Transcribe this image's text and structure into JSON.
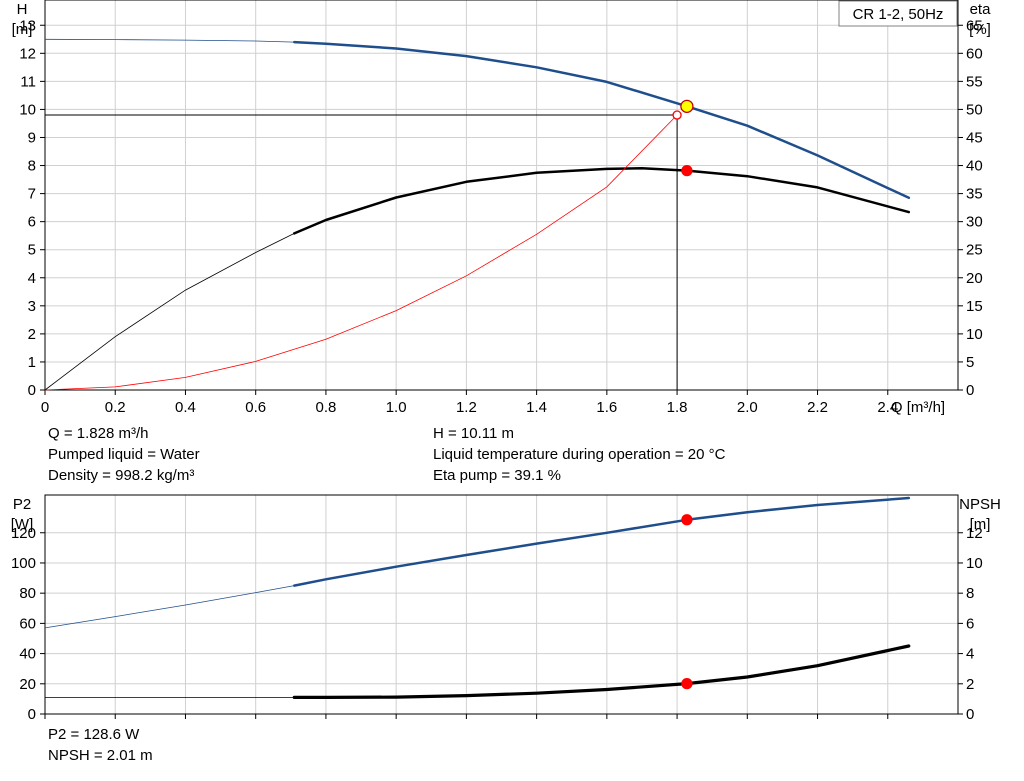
{
  "chart_data": [
    {
      "type": "line",
      "title": "CR 1-2, 50Hz",
      "x_axis": {
        "label": "Q [m³/h]",
        "range": [
          0,
          2.6
        ],
        "ticks": [
          0,
          0.2,
          0.4,
          0.6,
          0.8,
          1.0,
          1.2,
          1.4,
          1.6,
          1.8,
          2.0,
          2.2,
          2.4
        ],
        "tick_labels": [
          "0",
          "0.2",
          "0.4",
          "0.6",
          "0.8",
          "1.0",
          "1.2",
          "1.4",
          "1.6",
          "1.8",
          "2.0",
          "2.2",
          "2.4"
        ]
      },
      "y_left": {
        "label_line1": "H",
        "label_line2": "[m]",
        "range": [
          0,
          13.9
        ],
        "ticks": [
          0,
          1,
          2,
          3,
          4,
          5,
          6,
          7,
          8,
          9,
          10,
          11,
          12,
          13
        ],
        "tick_labels": [
          "0",
          "1",
          "2",
          "3",
          "4",
          "5",
          "6",
          "7",
          "8",
          "9",
          "10",
          "11",
          "12",
          "13"
        ]
      },
      "y_right": {
        "label_line1": "eta",
        "label_line2": "[%]",
        "range": [
          0,
          69.5
        ],
        "ticks": [
          0,
          5,
          10,
          15,
          20,
          25,
          30,
          35,
          40,
          45,
          50,
          55,
          60,
          65
        ],
        "tick_labels": [
          "0",
          "5",
          "10",
          "15",
          "20",
          "25",
          "30",
          "35",
          "40",
          "45",
          "50",
          "55",
          "60",
          "65"
        ]
      },
      "grid": true,
      "series": [
        {
          "axis": "left",
          "color": "#1f4e8c",
          "operating_from": 0.71,
          "x": [
            0,
            0.2,
            0.4,
            0.6,
            0.71,
            0.8,
            1.0,
            1.2,
            1.4,
            1.6,
            1.828,
            2.0,
            2.2,
            2.46
          ],
          "y": [
            12.5,
            12.49,
            12.47,
            12.44,
            12.4,
            12.34,
            12.17,
            11.9,
            11.5,
            10.98,
            10.11,
            9.42,
            8.36,
            6.85
          ]
        },
        {
          "axis": "right",
          "color": "#000000",
          "operating_from": 0.71,
          "x": [
            0,
            0.2,
            0.4,
            0.6,
            0.71,
            0.8,
            1.0,
            1.2,
            1.4,
            1.6,
            1.7,
            1.828,
            2.0,
            2.2,
            2.46
          ],
          "y": [
            0,
            9.5,
            17.8,
            24.5,
            27.9,
            30.3,
            34.3,
            37.1,
            38.7,
            39.4,
            39.5,
            39.1,
            38.1,
            36.1,
            31.7
          ]
        },
        {
          "axis": "left",
          "color": "#ff0000",
          "x": [
            0,
            0.2,
            0.4,
            0.6,
            0.8,
            1.0,
            1.2,
            1.4,
            1.6,
            1.8
          ],
          "y": [
            0,
            0.11,
            0.45,
            1.02,
            1.81,
            2.83,
            4.07,
            5.55,
            7.24,
            9.8
          ]
        },
        {
          "axis": "left",
          "color": "#000000",
          "kind": "operating_line",
          "x": [
            0,
            1.8,
            1.8
          ],
          "y": [
            9.8,
            9.8,
            0
          ]
        }
      ],
      "points": [
        {
          "x": 1.828,
          "y": 10.11,
          "axis": "left",
          "fill": "#ffff00",
          "stroke": "#c00000"
        },
        {
          "x": 1.828,
          "y": 39.1,
          "axis": "right",
          "fill": "#ff0000",
          "stroke": "#ff0000"
        },
        {
          "x": 1.8,
          "y": 9.8,
          "axis": "left",
          "fill": "#ffffff",
          "stroke": "#ff0000"
        }
      ]
    },
    {
      "type": "line",
      "x_axis": {
        "range": [
          0,
          2.6
        ],
        "ticks": [
          0,
          0.2,
          0.4,
          0.6,
          0.8,
          1.0,
          1.2,
          1.4,
          1.6,
          1.8,
          2.0,
          2.2,
          2.4
        ]
      },
      "y_left": {
        "label_line1": "P2",
        "label_line2": "[W]",
        "range": [
          0,
          145
        ],
        "ticks": [
          0,
          20,
          40,
          60,
          80,
          100,
          120
        ],
        "tick_labels": [
          "0",
          "20",
          "40",
          "60",
          "80",
          "100",
          "120"
        ]
      },
      "y_right": {
        "label_line1": "NPSH",
        "label_line2": "[m]",
        "range": [
          0,
          14.5
        ],
        "ticks": [
          0,
          2,
          4,
          6,
          8,
          10,
          12
        ],
        "tick_labels": [
          "0",
          "2",
          "4",
          "6",
          "8",
          "10",
          "12"
        ]
      },
      "grid": true,
      "series": [
        {
          "axis": "left",
          "color": "#1f4e8c",
          "operating_from": 0.71,
          "x": [
            0,
            0.2,
            0.4,
            0.6,
            0.71,
            0.8,
            1.0,
            1.2,
            1.4,
            1.6,
            1.828,
            2.0,
            2.2,
            2.46
          ],
          "y": [
            57,
            64.5,
            72.2,
            80.4,
            85,
            89.2,
            97.5,
            105.3,
            112.8,
            120,
            128.6,
            133.6,
            138.4,
            143
          ]
        },
        {
          "axis": "right",
          "color": "#000000",
          "operating_from": 0.71,
          "thick": true,
          "x": [
            0,
            0.2,
            0.4,
            0.6,
            0.71,
            0.8,
            1.0,
            1.2,
            1.4,
            1.6,
            1.828,
            2.0,
            2.2,
            2.46
          ],
          "y": [
            1.1,
            1.1,
            1.1,
            1.1,
            1.1,
            1.1,
            1.12,
            1.22,
            1.38,
            1.62,
            2.01,
            2.45,
            3.2,
            4.5
          ]
        }
      ],
      "points": [
        {
          "x": 1.828,
          "y": 128.6,
          "axis": "left",
          "fill": "#ff0000",
          "stroke": "#ff0000"
        },
        {
          "x": 1.828,
          "y": 2.01,
          "axis": "right",
          "fill": "#ff0000",
          "stroke": "#ff0000"
        }
      ]
    }
  ],
  "info": {
    "q": "Q = 1.828 m³/h",
    "liquid": "Pumped liquid = Water",
    "density": "Density = 998.2 kg/m³",
    "h": "H = 10.11 m",
    "temperature": "Liquid temperature during operation = 20 °C",
    "eta_pump": "Eta pump = 39.1 %",
    "p2": "P2 = 128.6 W",
    "npsh": "NPSH = 2.01 m"
  }
}
